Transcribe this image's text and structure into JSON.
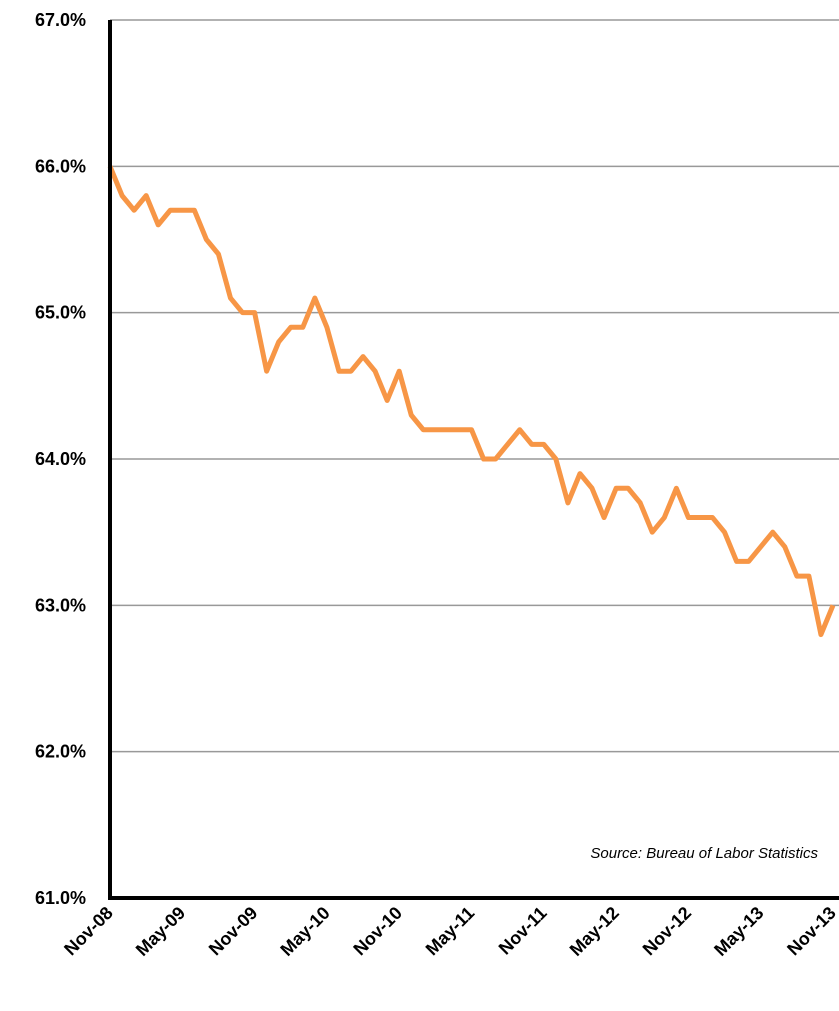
{
  "chart_data": {
    "type": "line",
    "categories": [
      "Nov-08",
      null,
      null,
      null,
      null,
      null,
      "May-09",
      null,
      null,
      null,
      null,
      null,
      "Nov-09",
      null,
      null,
      null,
      null,
      null,
      "May-10",
      null,
      null,
      null,
      null,
      null,
      "Nov-10",
      null,
      null,
      null,
      null,
      null,
      "May-11",
      null,
      null,
      null,
      null,
      null,
      "Nov-11",
      null,
      null,
      null,
      null,
      null,
      "May-12",
      null,
      null,
      null,
      null,
      null,
      "Nov-12",
      null,
      null,
      null,
      null,
      null,
      "May-13",
      null,
      null,
      null,
      null,
      null,
      "Nov-13"
    ],
    "values": [
      66.0,
      65.8,
      65.7,
      65.8,
      65.6,
      65.7,
      65.7,
      65.7,
      65.5,
      65.4,
      65.1,
      65.0,
      65.0,
      64.6,
      64.8,
      64.9,
      64.9,
      65.1,
      64.9,
      64.6,
      64.6,
      64.7,
      64.6,
      64.4,
      64.6,
      64.3,
      64.2,
      64.2,
      64.2,
      64.2,
      64.2,
      64.0,
      64.0,
      64.1,
      64.2,
      64.1,
      64.1,
      64.0,
      63.7,
      63.9,
      63.8,
      63.6,
      63.8,
      63.8,
      63.7,
      63.5,
      63.6,
      63.8,
      63.6,
      63.6,
      63.6,
      63.5,
      63.3,
      63.3,
      63.4,
      63.5,
      63.4,
      63.2,
      63.2,
      62.8,
      63.0
    ],
    "color": "#f79646",
    "ylim": [
      61,
      67
    ],
    "yticks": [
      {
        "value": 61,
        "label": "61.0%"
      },
      {
        "value": 62,
        "label": "62.0%"
      },
      {
        "value": 63,
        "label": "63.0%"
      },
      {
        "value": 64,
        "label": "64.0%"
      },
      {
        "value": 65,
        "label": "65.0%"
      },
      {
        "value": 66,
        "label": "66.0%"
      },
      {
        "value": 67,
        "label": "67.0%"
      }
    ],
    "grid": true,
    "annotation": "Source: Bureau of Labor Statistics"
  }
}
